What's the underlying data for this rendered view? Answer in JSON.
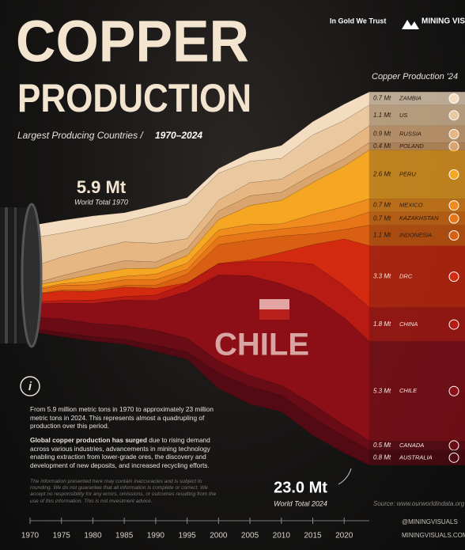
{
  "chart_data": {
    "type": "streamgraph",
    "title_line1": "COPPER",
    "title_line2": "PRODUCTION",
    "subtitle_main": "Largest Producing Countries /",
    "subtitle_years": "1970–2024",
    "brand_gold": "In Gold We Trust",
    "brand_mining": "MINING VISUALS",
    "legend_title": "Copper Production '24",
    "x": [
      1970,
      1975,
      1980,
      1985,
      1990,
      1995,
      2000,
      2005,
      2010,
      2015,
      2020,
      2024
    ],
    "xlim": [
      1970,
      2024
    ],
    "xticks": [
      1970,
      1975,
      1980,
      1985,
      1990,
      1995,
      2000,
      2005,
      2010,
      2015,
      2020
    ],
    "series": [
      {
        "name": "ZAMBIA",
        "color": "#f3dcc0",
        "values": [
          0.68,
          0.68,
          0.6,
          0.46,
          0.42,
          0.34,
          0.25,
          0.45,
          0.69,
          0.71,
          0.87,
          0.7
        ],
        "value_label": "0.7 Mt"
      },
      {
        "name": "US",
        "color": "#eac8a0",
        "values": [
          1.56,
          1.28,
          1.18,
          1.1,
          1.59,
          1.85,
          1.44,
          1.14,
          1.11,
          1.38,
          1.2,
          1.1
        ],
        "value_label": "1.1 Mt"
      },
      {
        "name": "RUSSIA",
        "color": "#e6b683",
        "values": [
          0.9,
          1.0,
          1.0,
          1.0,
          1.0,
          0.52,
          0.58,
          0.7,
          0.7,
          0.73,
          0.85,
          0.9
        ],
        "value_label": "0.9 Mt"
      },
      {
        "name": "POLAND",
        "color": "#d9a46d",
        "values": [
          0.08,
          0.25,
          0.34,
          0.43,
          0.33,
          0.38,
          0.45,
          0.52,
          0.43,
          0.43,
          0.39,
          0.4
        ],
        "value_label": "0.4 Mt"
      },
      {
        "name": "PERU",
        "color": "#f5a623",
        "values": [
          0.21,
          0.17,
          0.37,
          0.4,
          0.32,
          0.41,
          0.55,
          1.01,
          1.25,
          1.7,
          2.15,
          2.6
        ],
        "value_label": "2.6 Mt"
      },
      {
        "name": "MEXICO",
        "color": "#f08c1e",
        "values": [
          0.06,
          0.08,
          0.18,
          0.19,
          0.29,
          0.33,
          0.36,
          0.43,
          0.27,
          0.59,
          0.73,
          0.7
        ],
        "value_label": "0.7 Mt"
      },
      {
        "name": "KAZAKHSTAN",
        "color": "#e67617",
        "values": [
          0.2,
          0.25,
          0.3,
          0.3,
          0.3,
          0.25,
          0.43,
          0.4,
          0.38,
          0.44,
          0.5,
          0.7
        ],
        "value_label": "0.7 Mt"
      },
      {
        "name": "INDONESIA",
        "color": "#d95f12",
        "values": [
          0,
          0.06,
          0.06,
          0.09,
          0.16,
          0.46,
          1.0,
          1.06,
          0.87,
          0.58,
          0.5,
          1.1
        ],
        "value_label": "1.1 Mt"
      },
      {
        "name": "DRC",
        "color": "#d42a0f",
        "values": [
          0.39,
          0.5,
          0.46,
          0.5,
          0.36,
          0.03,
          0.02,
          0.09,
          0.5,
          1.03,
          2.5,
          3.3
        ],
        "value_label": "3.3 Mt"
      },
      {
        "name": "CHINA",
        "color": "#b81a14",
        "values": [
          0.1,
          0.15,
          0.18,
          0.19,
          0.3,
          0.44,
          0.59,
          0.76,
          1.18,
          1.71,
          1.7,
          1.8
        ],
        "value_label": "1.8 Mt"
      },
      {
        "name": "CHILE",
        "color": "#8c0f18",
        "values": [
          0.69,
          0.83,
          1.07,
          1.36,
          1.59,
          2.49,
          4.6,
          5.32,
          5.42,
          5.76,
          5.73,
          5.3
        ],
        "value_label": "5.3 Mt"
      },
      {
        "name": "CANADA",
        "color": "#6a0c16",
        "values": [
          0.61,
          0.73,
          0.71,
          0.74,
          0.79,
          0.73,
          0.63,
          0.6,
          0.52,
          0.7,
          0.59,
          0.5
        ],
        "value_label": "0.5 Mt"
      },
      {
        "name": "AUSTRALIA",
        "color": "#540a12",
        "values": [
          0.16,
          0.22,
          0.23,
          0.26,
          0.33,
          0.4,
          0.83,
          0.93,
          0.87,
          0.97,
          0.89,
          0.8
        ],
        "value_label": "0.8 Mt"
      }
    ],
    "annotations": {
      "start_value": "5.9 Mt",
      "start_label": "World Total 1970",
      "end_value": "23.0 Mt",
      "end_label": "World Total 2024",
      "highlight": "CHILE"
    },
    "info_paragraph": "From 5.9 million metric tons in 1970 to approximately 23 million metric tons in 2024. This represents almost a quadrupling of production over this period.",
    "info_bold": "Global copper production has surged",
    "info_rest": "due to rising demand across various industries, advancements in mining technology enabling extraction from lower-grade ores, the discovery and development of new deposits, and increased recycling efforts.",
    "disclaimer": "The information presented here may contain inaccuracies and is subject to rounding. We do not guarantee that all information is complete or correct. We accept no responsibility for any errors, omissions, or outcomes resulting from the use of this information. This is not investment advice.",
    "source": "Source: www.ourworldindata.org",
    "handle": "@MININGVISUALS",
    "website": "MININGVISUALS.COM"
  }
}
